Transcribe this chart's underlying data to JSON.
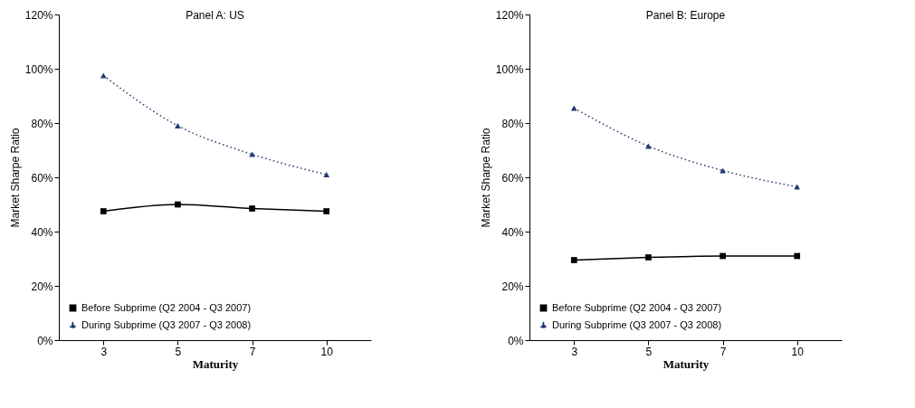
{
  "chart_data": [
    {
      "type": "line",
      "title": "Panel A: US",
      "xlabel": "Maturity",
      "ylabel": "Market Sharpe Ratio",
      "categories": [
        "3",
        "5",
        "7",
        "10"
      ],
      "ylim": [
        0,
        120
      ],
      "yticks": [
        {
          "value": 0,
          "label": "0%"
        },
        {
          "value": 20,
          "label": "20%"
        },
        {
          "value": 40,
          "label": "40%"
        },
        {
          "value": 60,
          "label": "60%"
        },
        {
          "value": 80,
          "label": "80%"
        },
        {
          "value": 100,
          "label": "100%"
        },
        {
          "value": 120,
          "label": "120%"
        }
      ],
      "grid": false,
      "legend": "bottom left",
      "series": [
        {
          "name": "Before Subprime (Q2 2004 - Q3 2007)",
          "color": "#000000",
          "marker": "square",
          "line_style": "solid",
          "values": [
            47.5,
            50,
            48.5,
            47.5
          ]
        },
        {
          "name": "During Subprime (Q3 2007 - Q3 2008)",
          "color": "#1f3a6e",
          "marker": "triangle",
          "line_style": "dotted",
          "values": [
            97.5,
            79,
            68.5,
            61
          ]
        }
      ]
    },
    {
      "type": "line",
      "title": "Panel B: Europe",
      "xlabel": "Maturity",
      "ylabel": "Market Sharpe Ratio",
      "categories": [
        "3",
        "5",
        "7",
        "10"
      ],
      "ylim": [
        0,
        120
      ],
      "yticks": [
        {
          "value": 0,
          "label": "0%"
        },
        {
          "value": 20,
          "label": "20%"
        },
        {
          "value": 40,
          "label": "40%"
        },
        {
          "value": 60,
          "label": "60%"
        },
        {
          "value": 80,
          "label": "80%"
        },
        {
          "value": 100,
          "label": "100%"
        },
        {
          "value": 120,
          "label": "120%"
        }
      ],
      "grid": false,
      "legend": "bottom left",
      "series": [
        {
          "name": "Before Subprime (Q2 2004 - Q3 2007)",
          "color": "#000000",
          "marker": "square",
          "line_style": "solid",
          "values": [
            29.5,
            30.5,
            31,
            31
          ]
        },
        {
          "name": "During Subprime (Q3 2007 - Q3 2008)",
          "color": "#1f3a6e",
          "marker": "triangle",
          "line_style": "dotted",
          "values": [
            85.5,
            71.5,
            62.5,
            56.5
          ]
        }
      ]
    }
  ]
}
